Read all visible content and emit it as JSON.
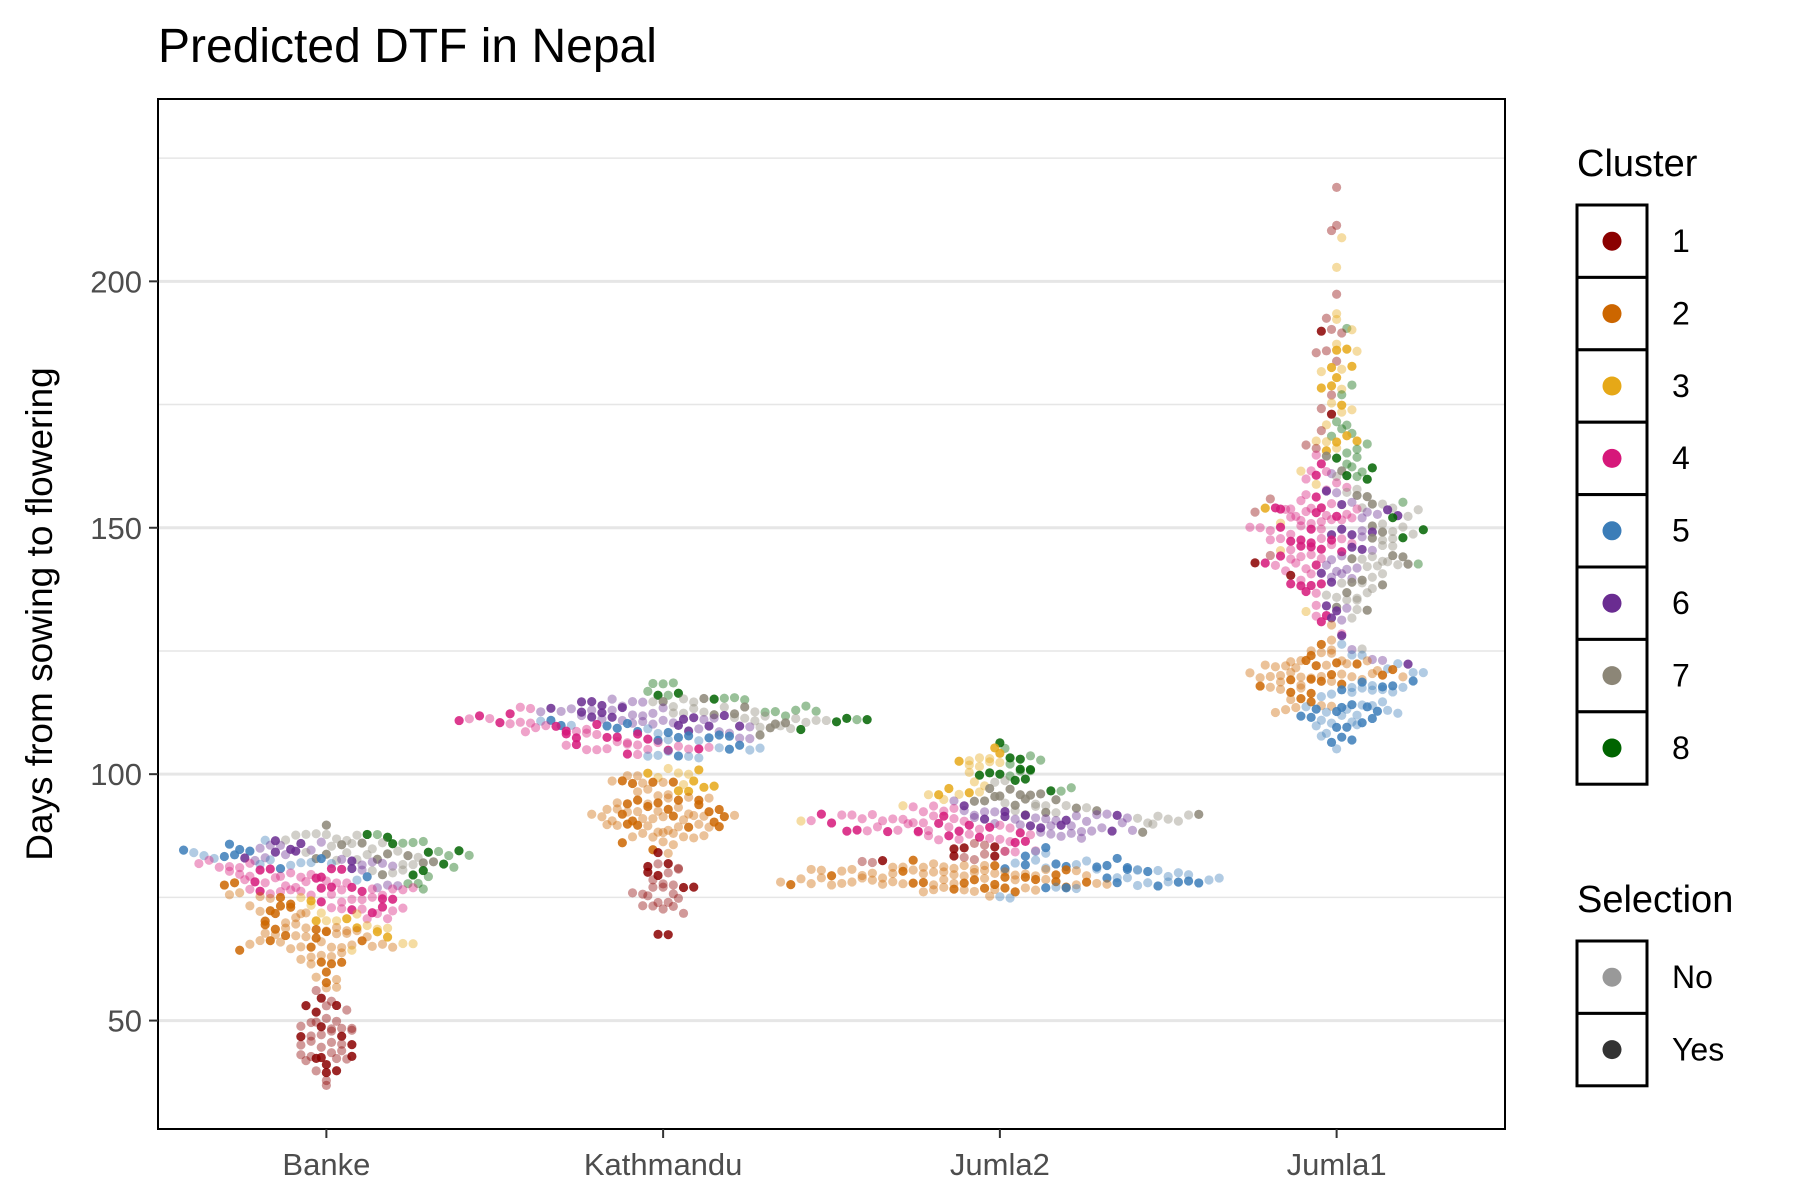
{
  "chart_data": {
    "type": "scatter",
    "title": "Predicted DTF in Nepal",
    "xlabel": "",
    "ylabel": "Days from sowing to flowering",
    "categories": [
      "Banke",
      "Kathmandu",
      "Jumla2",
      "Jumla1"
    ],
    "ylim": [
      28,
      237
    ],
    "yticks": [
      50,
      100,
      150,
      200
    ],
    "grid": true,
    "legend_placement": "right",
    "clusters": [
      {
        "name": "1",
        "color": "#8B0000"
      },
      {
        "name": "2",
        "color": "#CC6600"
      },
      {
        "name": "3",
        "color": "#E6A817"
      },
      {
        "name": "4",
        "color": "#D6187A"
      },
      {
        "name": "5",
        "color": "#3B7DB8"
      },
      {
        "name": "6",
        "color": "#6A2C91"
      },
      {
        "name": "7",
        "color": "#8C8677"
      },
      {
        "name": "8",
        "color": "#006400"
      }
    ],
    "selection": [
      {
        "name": "No",
        "color": "#999999"
      },
      {
        "name": "Yes",
        "color": "#333333"
      }
    ],
    "groups": [
      {
        "category": "Banke",
        "ranges": [
          {
            "cluster": "1",
            "min": 34,
            "max": 58,
            "n": 45
          },
          {
            "cluster": "2",
            "min": 56,
            "max": 78,
            "n": 70
          },
          {
            "cluster": "3",
            "min": 64,
            "max": 76,
            "n": 18
          },
          {
            "cluster": "4",
            "min": 70,
            "max": 83,
            "n": 65
          },
          {
            "cluster": "5",
            "min": 78,
            "max": 88,
            "n": 20
          },
          {
            "cluster": "6",
            "min": 76,
            "max": 88,
            "n": 25
          },
          {
            "cluster": "7",
            "min": 78,
            "max": 91,
            "n": 35
          },
          {
            "cluster": "8",
            "min": 74,
            "max": 90,
            "n": 20
          }
        ]
      },
      {
        "category": "Kathmandu",
        "ranges": [
          {
            "cluster": "1",
            "min": 66,
            "max": 86,
            "n": 30
          },
          {
            "cluster": "2",
            "min": 83,
            "max": 100,
            "n": 75
          },
          {
            "cluster": "3",
            "min": 96,
            "max": 103,
            "n": 12
          },
          {
            "cluster": "4",
            "min": 103,
            "max": 114,
            "n": 45
          },
          {
            "cluster": "5",
            "min": 102,
            "max": 112,
            "n": 30
          },
          {
            "cluster": "6",
            "min": 106,
            "max": 116,
            "n": 45
          },
          {
            "cluster": "7",
            "min": 107,
            "max": 116,
            "n": 30
          },
          {
            "cluster": "8",
            "min": 108,
            "max": 120,
            "n": 22
          }
        ]
      },
      {
        "category": "Jumla2",
        "ranges": [
          {
            "cluster": "1",
            "min": 80,
            "max": 87,
            "n": 14
          },
          {
            "cluster": "2",
            "min": 75,
            "max": 83,
            "n": 85
          },
          {
            "cluster": "3",
            "min": 88,
            "max": 110,
            "n": 22
          },
          {
            "cluster": "4",
            "min": 84,
            "max": 94,
            "n": 55
          },
          {
            "cluster": "5",
            "min": 74,
            "max": 86,
            "n": 45
          },
          {
            "cluster": "6",
            "min": 86,
            "max": 95,
            "n": 40
          },
          {
            "cluster": "7",
            "min": 88,
            "max": 99,
            "n": 35
          },
          {
            "cluster": "8",
            "min": 95,
            "max": 108,
            "n": 20
          }
        ]
      },
      {
        "category": "Jumla1",
        "ranges": [
          {
            "cluster": "1",
            "min": 124,
            "max": 225,
            "n": 22
          },
          {
            "cluster": "2",
            "min": 110,
            "max": 131,
            "n": 60
          },
          {
            "cluster": "3",
            "min": 130,
            "max": 217,
            "n": 35
          },
          {
            "cluster": "4",
            "min": 128,
            "max": 168,
            "n": 80
          },
          {
            "cluster": "5",
            "min": 102,
            "max": 131,
            "n": 55
          },
          {
            "cluster": "6",
            "min": 118,
            "max": 165,
            "n": 40
          },
          {
            "cluster": "7",
            "min": 120,
            "max": 166,
            "n": 55
          },
          {
            "cluster": "8",
            "min": 137,
            "max": 192,
            "n": 25
          }
        ]
      }
    ]
  },
  "legend": {
    "cluster_title": "Cluster",
    "selection_title": "Selection"
  }
}
